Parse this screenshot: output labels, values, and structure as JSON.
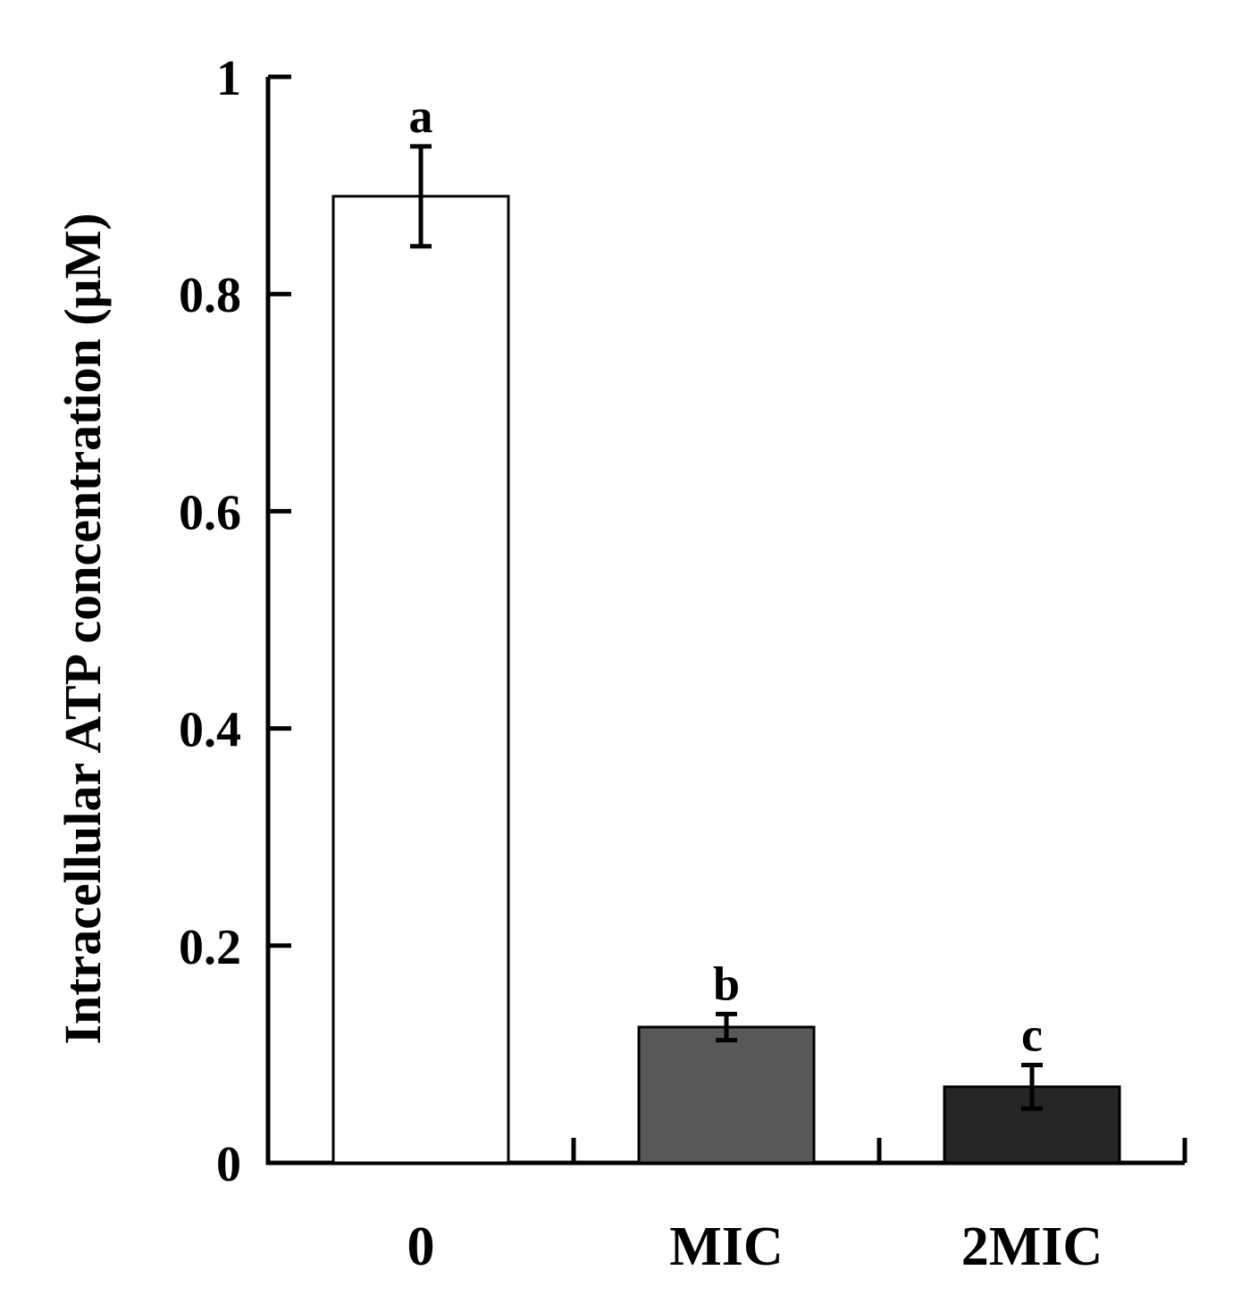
{
  "chart_data": {
    "type": "bar",
    "title": "",
    "xlabel": "",
    "ylabel": "Intracellular ATP concentration (μM)",
    "categories": [
      "0",
      "MIC",
      "2MIC"
    ],
    "values": [
      0.89,
      0.125,
      0.07
    ],
    "error": [
      0.046,
      0.012,
      0.02
    ],
    "significance_letters": [
      "a",
      "b",
      "c"
    ],
    "bar_colors": [
      "#ffffff",
      "#595959",
      "#262626"
    ],
    "ylim": [
      0,
      1
    ],
    "y_ticks": [
      0,
      0.2,
      0.4,
      0.6,
      0.8,
      1
    ],
    "y_tick_labels": [
      "0",
      "0.2",
      "0.4",
      "0.6",
      "0.8",
      "1"
    ],
    "grid": false,
    "legend": "none"
  }
}
